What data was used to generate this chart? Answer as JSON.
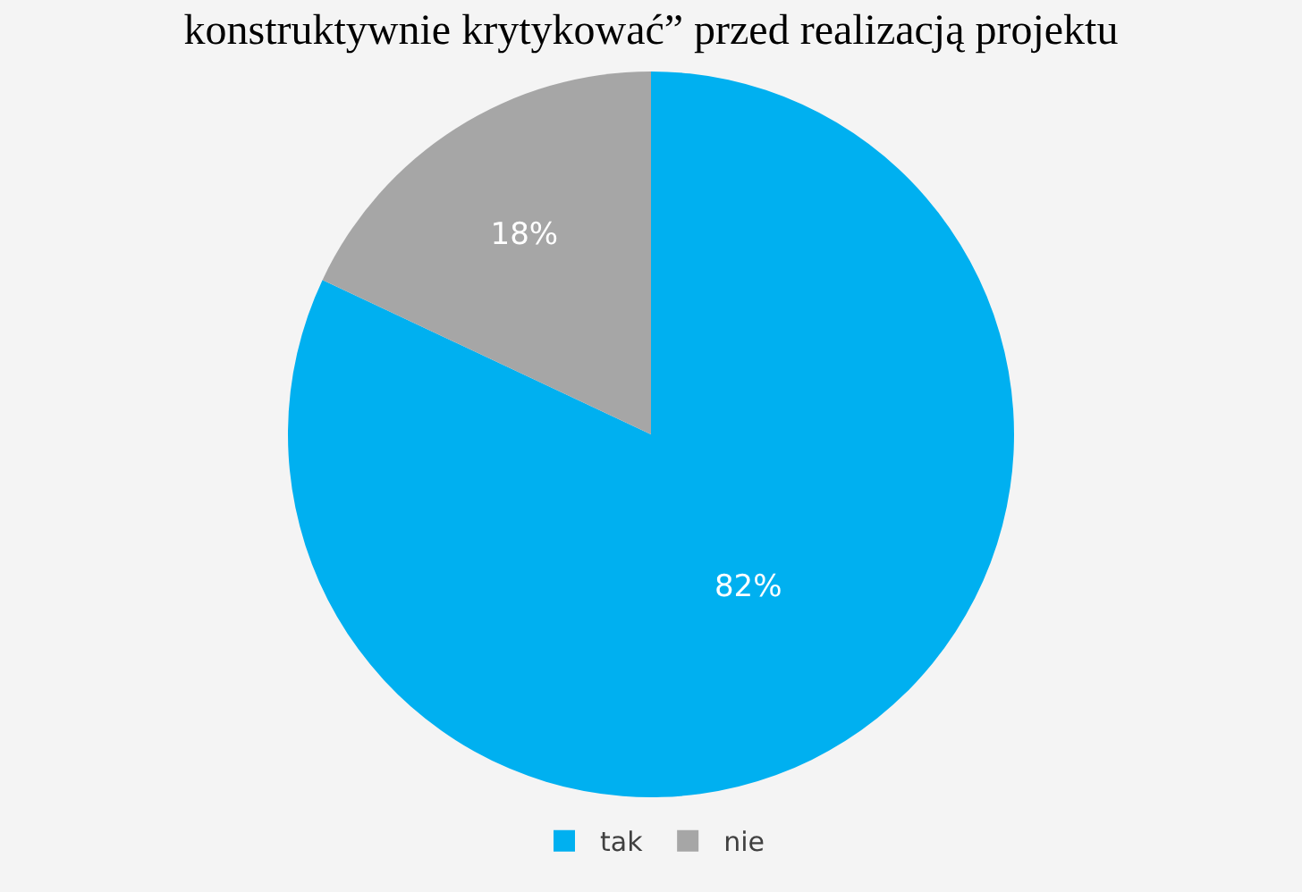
{
  "chart_data": {
    "type": "pie",
    "title": "konstruktywnie krytykować” przed realizacją projektu",
    "categories": [
      "tak",
      "nie"
    ],
    "values": [
      82,
      18
    ],
    "colors": [
      "#00b0f0",
      "#a6a6a6"
    ],
    "value_labels": [
      "82%",
      "18%"
    ],
    "legend": "bottom"
  }
}
